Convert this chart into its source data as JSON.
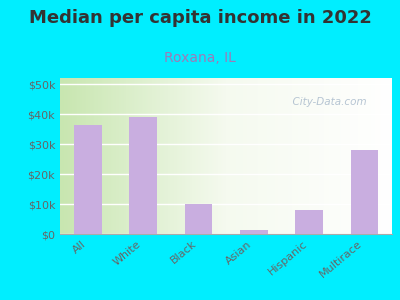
{
  "title": "Median per capita income in 2022",
  "subtitle": "Roxana, IL",
  "categories": [
    "All",
    "White",
    "Black",
    "Asian",
    "Hispanic",
    "Multirace"
  ],
  "values": [
    36500,
    39000,
    10000,
    1500,
    8000,
    28000
  ],
  "bar_color": "#c9aee0",
  "background_outer": "#00eeff",
  "title_color": "#333333",
  "subtitle_color": "#9b7bb8",
  "tick_label_color": "#666666",
  "ylim": [
    0,
    52000
  ],
  "yticks": [
    0,
    10000,
    20000,
    30000,
    40000,
    50000
  ],
  "watermark_text": "  City-Data.com",
  "watermark_color": "#aabbcc",
  "title_fontsize": 13,
  "subtitle_fontsize": 10,
  "tick_fontsize": 8,
  "bar_width": 0.5
}
